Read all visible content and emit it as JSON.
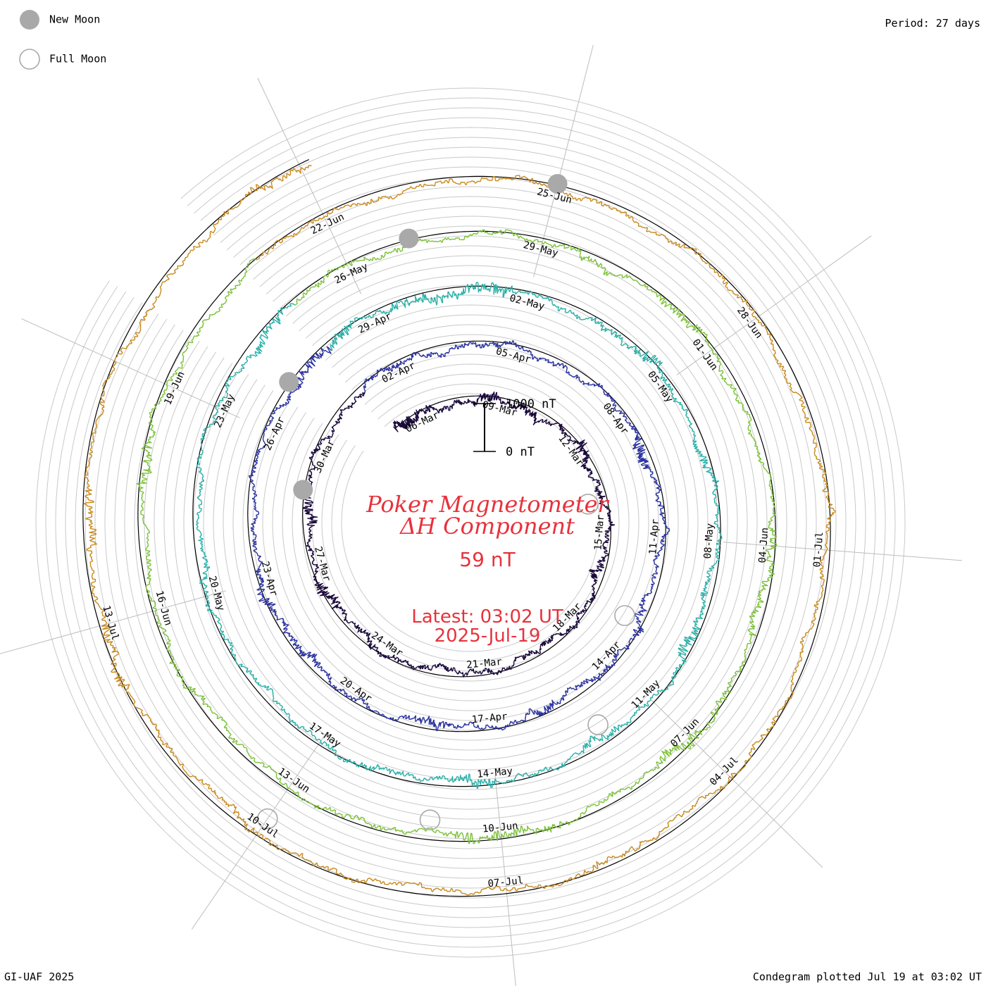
{
  "legend": {
    "new_moon_label": "New Moon",
    "full_moon_label": "Full Moon",
    "new_moon_color": "#a9a9a9",
    "full_moon_color": "#a9a9a9"
  },
  "period_label": "Period: 27 days",
  "scale": {
    "top_label": "1000 nT",
    "bottom_label": "0 nT"
  },
  "title": {
    "line1": "Poker Magnetometer",
    "line2": "ΔH Component",
    "value": "59 nT",
    "latest_line": "Latest: 03:02 UT",
    "date_line": "2025-Jul-19",
    "color": "#e8323c"
  },
  "footer": {
    "left": "GI-UAF 2025",
    "right": "Condegram plotted Jul 19 at 03:02 UT"
  },
  "chart_data": {
    "type": "line",
    "form": "condegram spiral",
    "period_days": 27,
    "ylabel": "ΔH (nT)",
    "scale_bar": [
      0,
      1000
    ],
    "latest_value_nT": 59,
    "start_date": "2025-03-05",
    "end_date": "2025-07-19",
    "series": [
      {
        "turn": 1,
        "color": "#1a0a3c",
        "date_labels": [
          "06-Mar",
          "09-Mar",
          "12-Mar",
          "15-Mar",
          "18-Mar",
          "21-Mar",
          "24-Mar",
          "27-Mar",
          "30-Mar"
        ]
      },
      {
        "turn": 2,
        "color": "#2c34a0",
        "date_labels": [
          "02-Apr",
          "05-Apr",
          "08-Apr",
          "11-Apr",
          "14-Apr",
          "17-Apr",
          "20-Apr",
          "23-Apr",
          "26-Apr"
        ]
      },
      {
        "turn": 3,
        "color": "#2bb0a8",
        "date_labels": [
          "29-Apr",
          "02-May",
          "05-May",
          "08-May",
          "11-May",
          "14-May",
          "17-May",
          "20-May",
          "23-May"
        ]
      },
      {
        "turn": 4,
        "color": "#7cc23a",
        "date_labels": [
          "26-May",
          "29-May",
          "01-Jun",
          "04-Jun",
          "07-Jun",
          "10-Jun",
          "13-Jun",
          "16-Jun",
          "19-Jun"
        ]
      },
      {
        "turn": 5,
        "color": "#c88a1e",
        "date_labels": [
          "22-Jun",
          "25-Jun",
          "28-Jun",
          "01-Jul",
          "04-Jul",
          "07-Jul",
          "10-Jul",
          "13-Jul"
        ]
      }
    ],
    "new_moons": [
      "2025-03-29",
      "2025-04-27",
      "2025-05-27",
      "2025-06-25"
    ],
    "full_moons": [
      "2025-03-14",
      "2025-04-13",
      "2025-05-12",
      "2025-06-11",
      "2025-07-10"
    ]
  }
}
